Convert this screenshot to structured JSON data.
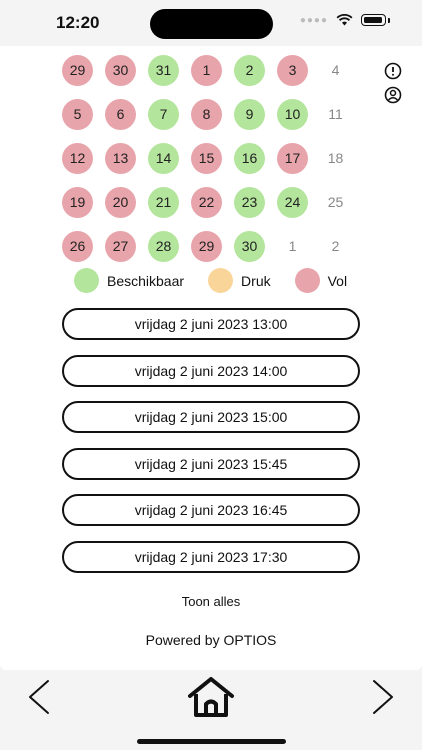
{
  "status_bar": {
    "time": "12:20"
  },
  "calendar": {
    "weeks": [
      [
        {
          "d": "29",
          "s": "vol"
        },
        {
          "d": "30",
          "s": "vol"
        },
        {
          "d": "31",
          "s": "beschikbaar"
        },
        {
          "d": "1",
          "s": "vol"
        },
        {
          "d": "2",
          "s": "beschikbaar"
        },
        {
          "d": "3",
          "s": "vol"
        },
        {
          "d": "4",
          "s": "other"
        }
      ],
      [
        {
          "d": "5",
          "s": "vol"
        },
        {
          "d": "6",
          "s": "vol"
        },
        {
          "d": "7",
          "s": "beschikbaar"
        },
        {
          "d": "8",
          "s": "vol"
        },
        {
          "d": "9",
          "s": "beschikbaar"
        },
        {
          "d": "10",
          "s": "beschikbaar"
        },
        {
          "d": "11",
          "s": "other"
        }
      ],
      [
        {
          "d": "12",
          "s": "vol"
        },
        {
          "d": "13",
          "s": "vol"
        },
        {
          "d": "14",
          "s": "beschikbaar"
        },
        {
          "d": "15",
          "s": "vol"
        },
        {
          "d": "16",
          "s": "beschikbaar"
        },
        {
          "d": "17",
          "s": "vol"
        },
        {
          "d": "18",
          "s": "other"
        }
      ],
      [
        {
          "d": "19",
          "s": "vol"
        },
        {
          "d": "20",
          "s": "vol"
        },
        {
          "d": "21",
          "s": "beschikbaar"
        },
        {
          "d": "22",
          "s": "vol"
        },
        {
          "d": "23",
          "s": "beschikbaar"
        },
        {
          "d": "24",
          "s": "beschikbaar"
        },
        {
          "d": "25",
          "s": "other"
        }
      ],
      [
        {
          "d": "26",
          "s": "vol"
        },
        {
          "d": "27",
          "s": "vol"
        },
        {
          "d": "28",
          "s": "beschikbaar"
        },
        {
          "d": "29",
          "s": "vol"
        },
        {
          "d": "30",
          "s": "beschikbaar"
        },
        {
          "d": "1",
          "s": "other"
        },
        {
          "d": "2",
          "s": "other"
        }
      ]
    ]
  },
  "legend": [
    {
      "label": "Beschikbaar",
      "color": "#b4e59c"
    },
    {
      "label": "Druk",
      "color": "#fad59a"
    },
    {
      "label": "Vol",
      "color": "#e8a4ab"
    }
  ],
  "slots": [
    "vrijdag 2 juni 2023 13:00",
    "vrijdag 2 juni 2023 14:00",
    "vrijdag 2 juni 2023 15:00",
    "vrijdag 2 juni 2023 15:45",
    "vrijdag 2 juni 2023 16:45",
    "vrijdag 2 juni 2023 17:30"
  ],
  "show_all_label": "Toon alles",
  "footer": "Powered by OPTIOS",
  "icons": {
    "info": "alert-circle-icon",
    "account": "user-circle-icon",
    "back": "chevron-left-icon",
    "home": "home-icon",
    "forward": "chevron-right-icon"
  }
}
